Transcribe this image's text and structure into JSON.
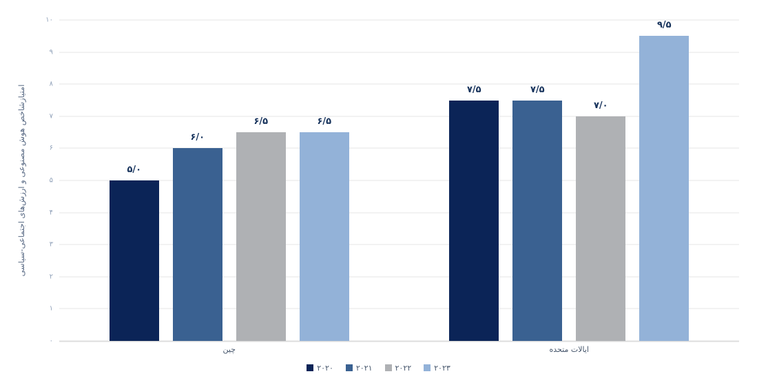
{
  "chart_data": {
    "type": "bar",
    "title": "",
    "ylabel": "امتیازشاخص هوش مصنوعی و ارزش‌های اجتماعی-سیاسی",
    "xlabel": "",
    "ylim": [
      0,
      10
    ],
    "ytick_labels": [
      "۱۰",
      "۹",
      "۸",
      "۷",
      "۶",
      "۵",
      "۴",
      "۳",
      "۲",
      "۱",
      "۰"
    ],
    "grid": true,
    "legend_position": "bottom-center",
    "categories": [
      "چین",
      "ایالات متحده"
    ],
    "series": [
      {
        "name": "۲۰۲۰",
        "color": "#0b2457",
        "values": [
          5.0,
          7.5
        ],
        "value_labels": [
          "۵/۰",
          "۷/۵"
        ]
      },
      {
        "name": "۲۰۲۱",
        "color": "#3a6191",
        "values": [
          6.0,
          7.5
        ],
        "value_labels": [
          "۶/۰",
          "۷/۵"
        ]
      },
      {
        "name": "۲۰۲۲",
        "color": "#afb1b4",
        "values": [
          6.5,
          7.0
        ],
        "value_labels": [
          "۶/۵",
          "۷/۰"
        ]
      },
      {
        "name": "۲۰۲۳",
        "color": "#93b2d8",
        "values": [
          6.5,
          9.5
        ],
        "value_labels": [
          "۶/۵",
          "۹/۵"
        ]
      }
    ],
    "colors": {
      "grid_line": "#e4e4e4",
      "tick_text": "#8fa0b8",
      "value_label_text": "#16325b",
      "category_text": "#44546a",
      "background": "#ffffff"
    }
  }
}
